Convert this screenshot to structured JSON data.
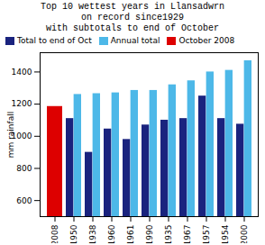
{
  "chart_data": {
    "type": "bar",
    "title": "Top 10 wettest years in Llansadwrn\non record since1929\nwith subtotals to end of October",
    "categories": [
      "2008",
      "1950",
      "1938",
      "1960",
      "1961",
      "1990",
      "1935",
      "1967",
      "1957",
      "1954",
      "2000"
    ],
    "series": [
      {
        "name": "Total to end of Oct",
        "color": "#1a237e",
        "values": [
          null,
          1110,
          900,
          1045,
          980,
          1070,
          1100,
          1110,
          1250,
          1110,
          1075
        ]
      },
      {
        "name": "Annual total",
        "color": "#4db8e8",
        "values": [
          null,
          1260,
          1265,
          1270,
          1285,
          1285,
          1320,
          1345,
          1400,
          1410,
          1470
        ]
      },
      {
        "name": "October 2008",
        "color": "#dd0000",
        "values": [
          1185,
          null,
          null,
          null,
          null,
          null,
          null,
          null,
          null,
          null,
          null
        ]
      }
    ],
    "ylabel": "mm rainfall",
    "ylim": [
      500,
      1520
    ],
    "yticks": [
      600,
      800,
      1000,
      1200,
      1400
    ],
    "grid": false,
    "legend": "upper left"
  }
}
